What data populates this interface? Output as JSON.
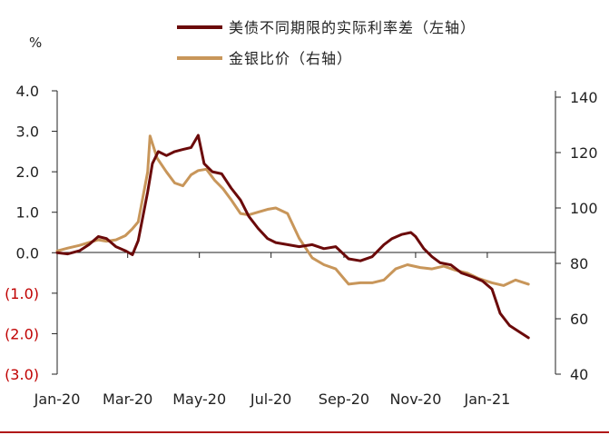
{
  "chart_data": {
    "type": "line",
    "title": "",
    "left_axis": {
      "unit": "%",
      "ylim": [
        -3.0,
        4.0
      ],
      "ticks": [
        4.0,
        3.0,
        2.0,
        1.0,
        0.0,
        -1.0,
        -2.0,
        -3.0
      ],
      "tick_labels": [
        "4.0",
        "3.0",
        "2.0",
        "1.0",
        "0.0",
        "(1.0)",
        "(2.0)",
        "(3.0)"
      ]
    },
    "right_axis": {
      "ylim": [
        40,
        148
      ],
      "ticks": [
        140,
        120,
        100,
        80,
        60,
        40
      ],
      "tick_labels": [
        "140",
        "120",
        "100",
        "80",
        "60",
        "40"
      ]
    },
    "x_axis": {
      "range": [
        "2020-01-01",
        "2021-02-28"
      ],
      "ticks": [
        "2020-01-01",
        "2020-03-01",
        "2020-05-01",
        "2020-07-01",
        "2020-09-01",
        "2020-11-01",
        "2021-01-01"
      ],
      "tick_labels": [
        "Jan-20",
        "Mar-20",
        "May-20",
        "Jul-20",
        "Sep-20",
        "Nov-20",
        "Jan-21"
      ]
    },
    "grid": false,
    "legend_position": "top-right",
    "series": [
      {
        "name": "美债不同期限的实际利率差（左轴）",
        "axis": "left",
        "color": "#6b0a0a",
        "points": [
          [
            "2020-01-01",
            0.0
          ],
          [
            "2020-01-10",
            -0.03
          ],
          [
            "2020-01-20",
            0.05
          ],
          [
            "2020-01-28",
            0.2
          ],
          [
            "2020-02-05",
            0.4
          ],
          [
            "2020-02-12",
            0.35
          ],
          [
            "2020-02-20",
            0.15
          ],
          [
            "2020-02-28",
            0.05
          ],
          [
            "2020-03-05",
            -0.05
          ],
          [
            "2020-03-10",
            0.3
          ],
          [
            "2020-03-14",
            0.9
          ],
          [
            "2020-03-18",
            1.5
          ],
          [
            "2020-03-22",
            2.2
          ],
          [
            "2020-03-27",
            2.5
          ],
          [
            "2020-04-03",
            2.4
          ],
          [
            "2020-04-10",
            2.5
          ],
          [
            "2020-04-17",
            2.55
          ],
          [
            "2020-04-24",
            2.6
          ],
          [
            "2020-04-30",
            2.9
          ],
          [
            "2020-05-05",
            2.2
          ],
          [
            "2020-05-12",
            2.0
          ],
          [
            "2020-05-20",
            1.95
          ],
          [
            "2020-05-28",
            1.6
          ],
          [
            "2020-06-05",
            1.3
          ],
          [
            "2020-06-12",
            0.9
          ],
          [
            "2020-06-20",
            0.6
          ],
          [
            "2020-06-28",
            0.35
          ],
          [
            "2020-07-05",
            0.25
          ],
          [
            "2020-07-15",
            0.2
          ],
          [
            "2020-07-25",
            0.15
          ],
          [
            "2020-08-05",
            0.2
          ],
          [
            "2020-08-15",
            0.1
          ],
          [
            "2020-08-25",
            0.15
          ],
          [
            "2020-09-05",
            -0.15
          ],
          [
            "2020-09-15",
            -0.2
          ],
          [
            "2020-09-25",
            -0.1
          ],
          [
            "2020-10-05",
            0.2
          ],
          [
            "2020-10-12",
            0.35
          ],
          [
            "2020-10-20",
            0.45
          ],
          [
            "2020-10-28",
            0.5
          ],
          [
            "2020-11-01",
            0.4
          ],
          [
            "2020-11-08",
            0.1
          ],
          [
            "2020-11-15",
            -0.1
          ],
          [
            "2020-11-22",
            -0.25
          ],
          [
            "2020-12-01",
            -0.3
          ],
          [
            "2020-12-10",
            -0.5
          ],
          [
            "2020-12-20",
            -0.6
          ],
          [
            "2020-12-28",
            -0.7
          ],
          [
            "2021-01-05",
            -0.9
          ],
          [
            "2021-01-12",
            -1.5
          ],
          [
            "2021-01-20",
            -1.8
          ],
          [
            "2021-01-28",
            -1.95
          ],
          [
            "2021-02-05",
            -2.1
          ]
        ]
      },
      {
        "name": "金银比价（右轴）",
        "axis": "right",
        "color": "#c8965a",
        "points": [
          [
            "2020-01-01",
            84.5
          ],
          [
            "2020-01-10",
            85.5
          ],
          [
            "2020-01-20",
            86.5
          ],
          [
            "2020-01-28",
            87.5
          ],
          [
            "2020-02-05",
            88.5
          ],
          [
            "2020-02-12",
            88.0
          ],
          [
            "2020-02-20",
            88.5
          ],
          [
            "2020-02-28",
            90.0
          ],
          [
            "2020-03-05",
            92.5
          ],
          [
            "2020-03-10",
            95.0
          ],
          [
            "2020-03-14",
            104.0
          ],
          [
            "2020-03-18",
            113.0
          ],
          [
            "2020-03-20",
            126.0
          ],
          [
            "2020-03-26",
            118.0
          ],
          [
            "2020-04-03",
            113.0
          ],
          [
            "2020-04-10",
            109.0
          ],
          [
            "2020-04-17",
            108.0
          ],
          [
            "2020-04-24",
            112.0
          ],
          [
            "2020-04-30",
            113.5
          ],
          [
            "2020-05-07",
            114.0
          ],
          [
            "2020-05-14",
            110.0
          ],
          [
            "2020-05-21",
            107.0
          ],
          [
            "2020-05-28",
            103.0
          ],
          [
            "2020-06-05",
            98.0
          ],
          [
            "2020-06-12",
            97.5
          ],
          [
            "2020-06-20",
            98.5
          ],
          [
            "2020-06-28",
            99.5
          ],
          [
            "2020-07-05",
            100.0
          ],
          [
            "2020-07-15",
            98.0
          ],
          [
            "2020-07-25",
            89.0
          ],
          [
            "2020-08-05",
            82.0
          ],
          [
            "2020-08-15",
            79.5
          ],
          [
            "2020-08-25",
            78.0
          ],
          [
            "2020-09-05",
            72.5
          ],
          [
            "2020-09-15",
            73.0
          ],
          [
            "2020-09-25",
            73.0
          ],
          [
            "2020-10-05",
            74.0
          ],
          [
            "2020-10-15",
            78.0
          ],
          [
            "2020-10-25",
            79.5
          ],
          [
            "2020-11-05",
            78.5
          ],
          [
            "2020-11-15",
            78.0
          ],
          [
            "2020-11-25",
            79.0
          ],
          [
            "2020-12-05",
            77.5
          ],
          [
            "2020-12-15",
            76.5
          ],
          [
            "2020-12-25",
            74.5
          ],
          [
            "2021-01-05",
            73.0
          ],
          [
            "2021-01-15",
            72.0
          ],
          [
            "2021-01-25",
            74.0
          ],
          [
            "2021-02-05",
            72.5
          ]
        ]
      }
    ]
  }
}
